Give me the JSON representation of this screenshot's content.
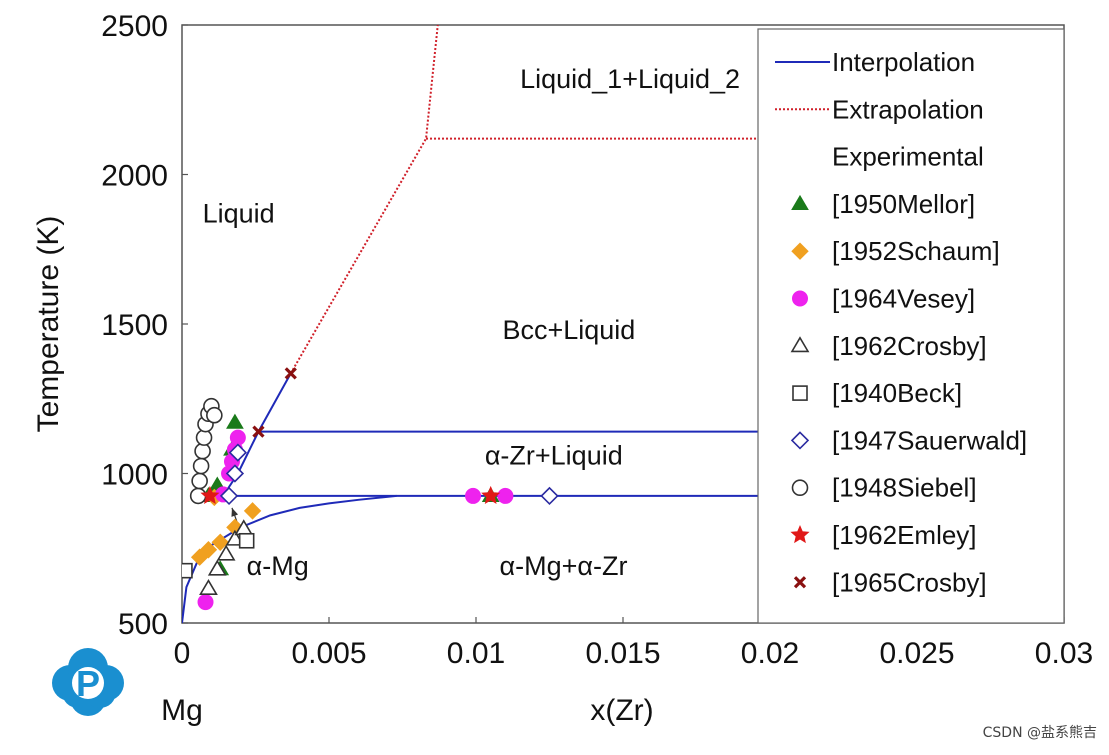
{
  "chart_data": {
    "type": "scatter",
    "title": "",
    "xlabel": "x(Zr)",
    "ylabel": "Temperature (K)",
    "xlim": [
      0,
      0.03
    ],
    "ylim": [
      500,
      2500
    ],
    "x_ticks": [
      0,
      0.005,
      0.01,
      0.015,
      0.02,
      0.025,
      0.03
    ],
    "x_tick_labels": [
      "0",
      "0.005",
      "0.01",
      "0.015",
      "0.02",
      "0.025",
      "0.03"
    ],
    "y_ticks": [
      500,
      1000,
      1500,
      2000,
      2500
    ],
    "y_tick_labels": [
      "500",
      "1000",
      "1500",
      "2000",
      "2500"
    ],
    "corner_label": "Mg",
    "region_labels": [
      {
        "text": "Liquid_1+Liquid_2",
        "x": 0.0115,
        "y": 2290
      },
      {
        "text": "Liquid",
        "x": 0.0007,
        "y": 1840
      },
      {
        "text": "Bcc+Liquid",
        "x": 0.0109,
        "y": 1450
      },
      {
        "text": "α-Zr+Liquid",
        "x": 0.0103,
        "y": 1030
      },
      {
        "text": "α-Mg",
        "x": 0.0022,
        "y": 660
      },
      {
        "text": "α-Mg+α-Zr",
        "x": 0.0108,
        "y": 660
      }
    ],
    "annotation_arrow": {
      "from": [
        0.0019,
        830
      ],
      "to": [
        0.0017,
        885
      ]
    },
    "lines": [
      {
        "name": "Interpolation",
        "color": "#1f2ab8",
        "dash": "solid",
        "segments": [
          {
            "x": [
              0.00082,
              0.0014,
              0.0019,
              0.0026,
              0.0037
            ],
            "y": [
              925,
              925,
              1000,
              1140,
              1335
            ]
          },
          {
            "x": [
              0.0026,
              0.03
            ],
            "y": [
              1140,
              1140
            ]
          },
          {
            "x": [
              0.00082,
              0.03
            ],
            "y": [
              925,
              925
            ]
          },
          {
            "x": [
              0,
              0.00015,
              0.0005,
              0.001,
              0.002,
              0.003,
              0.004,
              0.005,
              0.006,
              0.0073
            ],
            "y": [
              500,
              620,
              700,
              760,
              820,
              860,
              885,
              900,
              912,
              925
            ]
          }
        ]
      },
      {
        "name": "Extrapolation",
        "color": "#d0202a",
        "dash": "dotted",
        "segments": [
          {
            "x": [
              0.0037,
              0.0083,
              0.0087
            ],
            "y": [
              1335,
              2120,
              2500
            ]
          },
          {
            "x": [
              0.0083,
              0.03
            ],
            "y": [
              2120,
              2120
            ]
          }
        ]
      }
    ],
    "series": [
      {
        "name": "[1950Mellor]",
        "marker": "triangle",
        "color": "#1a7a1a",
        "filled": true,
        "x": [
          0.0009,
          0.0011,
          0.0013,
          0.0017,
          0.0018,
          0.0012,
          0.0105
        ],
        "y": [
          925,
          930,
          680,
          1080,
          1170,
          960,
          925
        ]
      },
      {
        "name": "[1952Schaum]",
        "marker": "diamond",
        "color": "#f0a020",
        "filled": true,
        "x": [
          0.0006,
          0.0009,
          0.0013,
          0.0018,
          0.0024,
          0.0011
        ],
        "y": [
          720,
          745,
          770,
          820,
          875,
          920
        ]
      },
      {
        "name": "[1964Vesey]",
        "marker": "circle",
        "color": "#ee22ee",
        "filled": true,
        "x": [
          0.0008,
          0.0014,
          0.0016,
          0.0017,
          0.0018,
          0.0019,
          0.0099,
          0.011
        ],
        "y": [
          570,
          930,
          1000,
          1040,
          1080,
          1120,
          925,
          925
        ]
      },
      {
        "name": "[1962Crosby]",
        "marker": "triangle",
        "color": "#333333",
        "filled": false,
        "x": [
          0.0009,
          0.0012,
          0.0015,
          0.0018,
          0.0021
        ],
        "y": [
          615,
          680,
          730,
          780,
          815
        ]
      },
      {
        "name": "[1940Beck]",
        "marker": "square",
        "color": "#333333",
        "filled": false,
        "x": [
          0.0001,
          0.0022
        ],
        "y": [
          675,
          775
        ]
      },
      {
        "name": "[1947Sauerwald]",
        "marker": "diamond",
        "color": "#2a2aa0",
        "filled": false,
        "x": [
          0.0016,
          0.0018,
          0.0019,
          0.0125
        ],
        "y": [
          925,
          1000,
          1070,
          925
        ]
      },
      {
        "name": "[1948Siebel]",
        "marker": "circle",
        "color": "#333333",
        "filled": false,
        "x": [
          0.00055,
          0.0006,
          0.00065,
          0.0007,
          0.00075,
          0.0008,
          0.0009,
          0.001,
          0.0011
        ],
        "y": [
          925,
          975,
          1025,
          1075,
          1120,
          1165,
          1200,
          1225,
          1195
        ]
      },
      {
        "name": "[1962Emley]",
        "marker": "star",
        "color": "#e01818",
        "filled": true,
        "x": [
          0.00095,
          0.0105
        ],
        "y": [
          925,
          925
        ]
      },
      {
        "name": "[1965Crosby]",
        "marker": "x",
        "color": "#8a1010",
        "filled": true,
        "x": [
          0.0026,
          0.0037
        ],
        "y": [
          1140,
          1335
        ]
      }
    ],
    "legend": {
      "position": "right",
      "entries": [
        "Interpolation",
        "Extrapolation",
        "Experimental",
        "[1950Mellor]",
        "[1952Schaum]",
        "[1964Vesey]",
        "[1962Crosby]",
        "[1940Beck]",
        "[1947Sauerwald]",
        "[1948Siebel]",
        "[1962Emley]",
        "[1965Crosby]"
      ],
      "header": "Experimental"
    }
  },
  "logo": {
    "letter": "P",
    "color": "#1a8fd0"
  },
  "watermark": "CSDN @盐系熊吉"
}
